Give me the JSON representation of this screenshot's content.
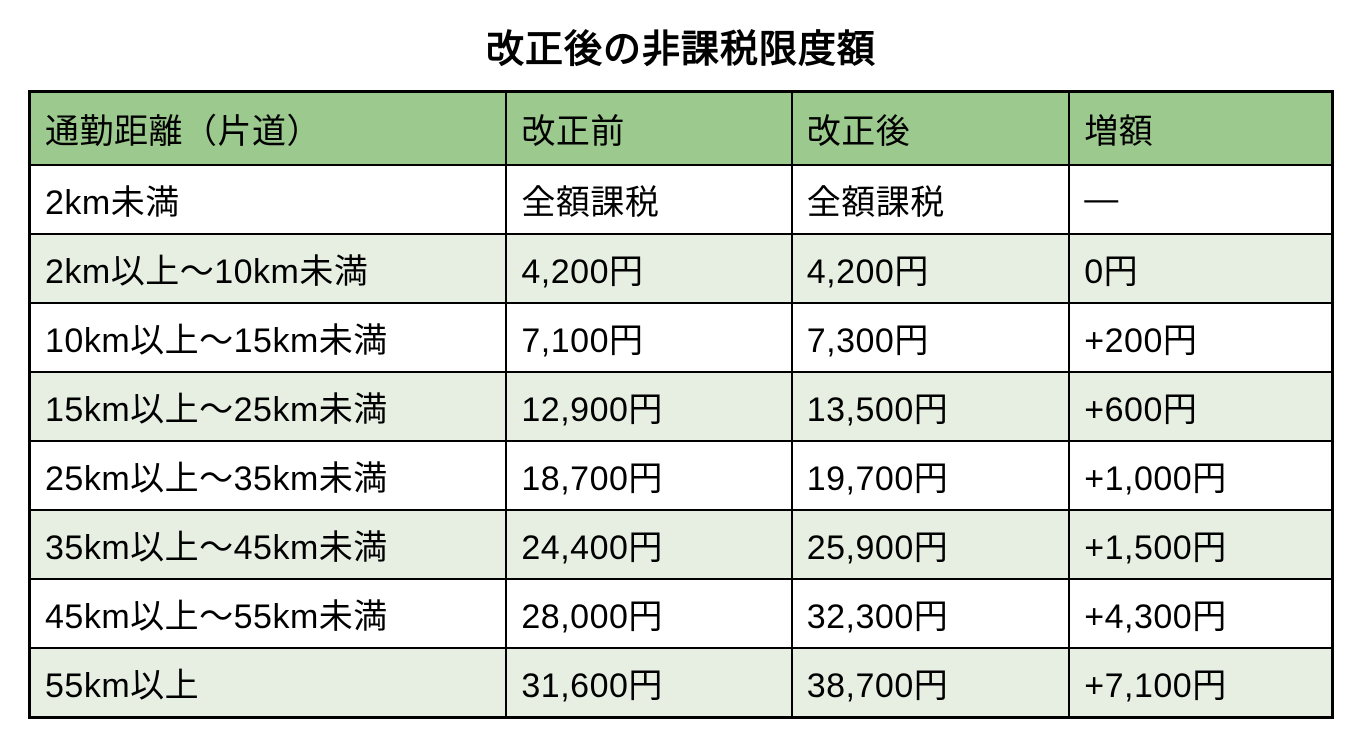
{
  "page": {
    "title": "改正後の非課税限度額"
  },
  "table": {
    "headers": [
      "通勤距離（片道）",
      "改正前",
      "改正後",
      "増額"
    ],
    "rows": [
      {
        "distance": "2km未満",
        "before": "全額課税",
        "after": "全額課税",
        "increase": "—"
      },
      {
        "distance": "2km以上〜10km未満",
        "before": "4,200円",
        "after": "4,200円",
        "increase": "0円"
      },
      {
        "distance": "10km以上〜15km未満",
        "before": "7,100円",
        "after": "7,300円",
        "increase": "+200円"
      },
      {
        "distance": "15km以上〜25km未満",
        "before": "12,900円",
        "after": "13,500円",
        "increase": "+600円"
      },
      {
        "distance": "25km以上〜35km未満",
        "before": "18,700円",
        "after": "19,700円",
        "increase": "+1,000円"
      },
      {
        "distance": "35km以上〜45km未満",
        "before": "24,400円",
        "after": "25,900円",
        "increase": "+1,500円"
      },
      {
        "distance": "45km以上〜55km未満",
        "before": "28,000円",
        "after": "32,300円",
        "increase": "+4,300円"
      },
      {
        "distance": "55km以上",
        "before": "31,600円",
        "after": "38,700円",
        "increase": "+7,100円"
      }
    ],
    "colors": {
      "header_bg": "#9cc98d",
      "row_bg": "#ffffff",
      "row_alt_bg": "#e7efe3",
      "border": "#000000"
    }
  }
}
